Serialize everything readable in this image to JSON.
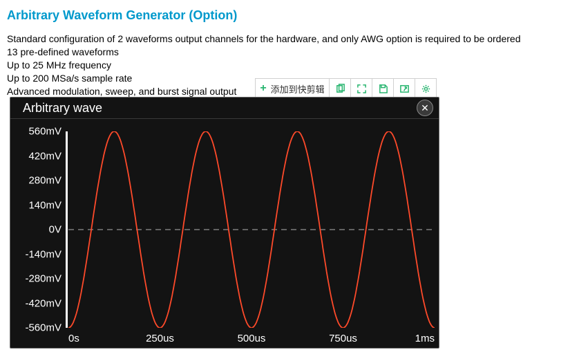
{
  "section": {
    "title": "Arbitrary Waveform Generator (Option)",
    "title_color": "#0099cc",
    "lines": [
      "Standard configuration of 2 waveforms output channels for the hardware, and only AWG option is required to be ordered",
      "13 pre-defined waveforms",
      "Up to 25 MHz frequency",
      "Up to 200 MSa/s sample rate",
      "Advanced modulation, sweep, and burst signal output"
    ]
  },
  "toolbar": {
    "accent": "#27b56f",
    "add_label": "添加到快剪辑"
  },
  "scope": {
    "title": "Arbitrary wave",
    "background": "#131313",
    "wave_color": "#ff4a2a",
    "grid_color": "#b0b0b0",
    "text_color": "#ffffff",
    "y_labels": [
      "560mV",
      "420mV",
      "280mV",
      "140mV",
      "0V",
      "-140mV",
      "-280mV",
      "-420mV",
      "-560mV"
    ],
    "x_labels": [
      "0s",
      "250us",
      "500us",
      "750us",
      "1ms"
    ],
    "chart": {
      "type": "line",
      "waveform": "sine",
      "amplitude_mV": 560,
      "cycles": 4,
      "x_range_us": [
        0,
        1000
      ],
      "y_range_mV": [
        -560,
        560
      ],
      "y_tick_step_mV": 140,
      "x_tick_step_us": 250,
      "line_width": 1.8,
      "center_dash": "8 6",
      "phase_offset_deg": 270
    }
  }
}
